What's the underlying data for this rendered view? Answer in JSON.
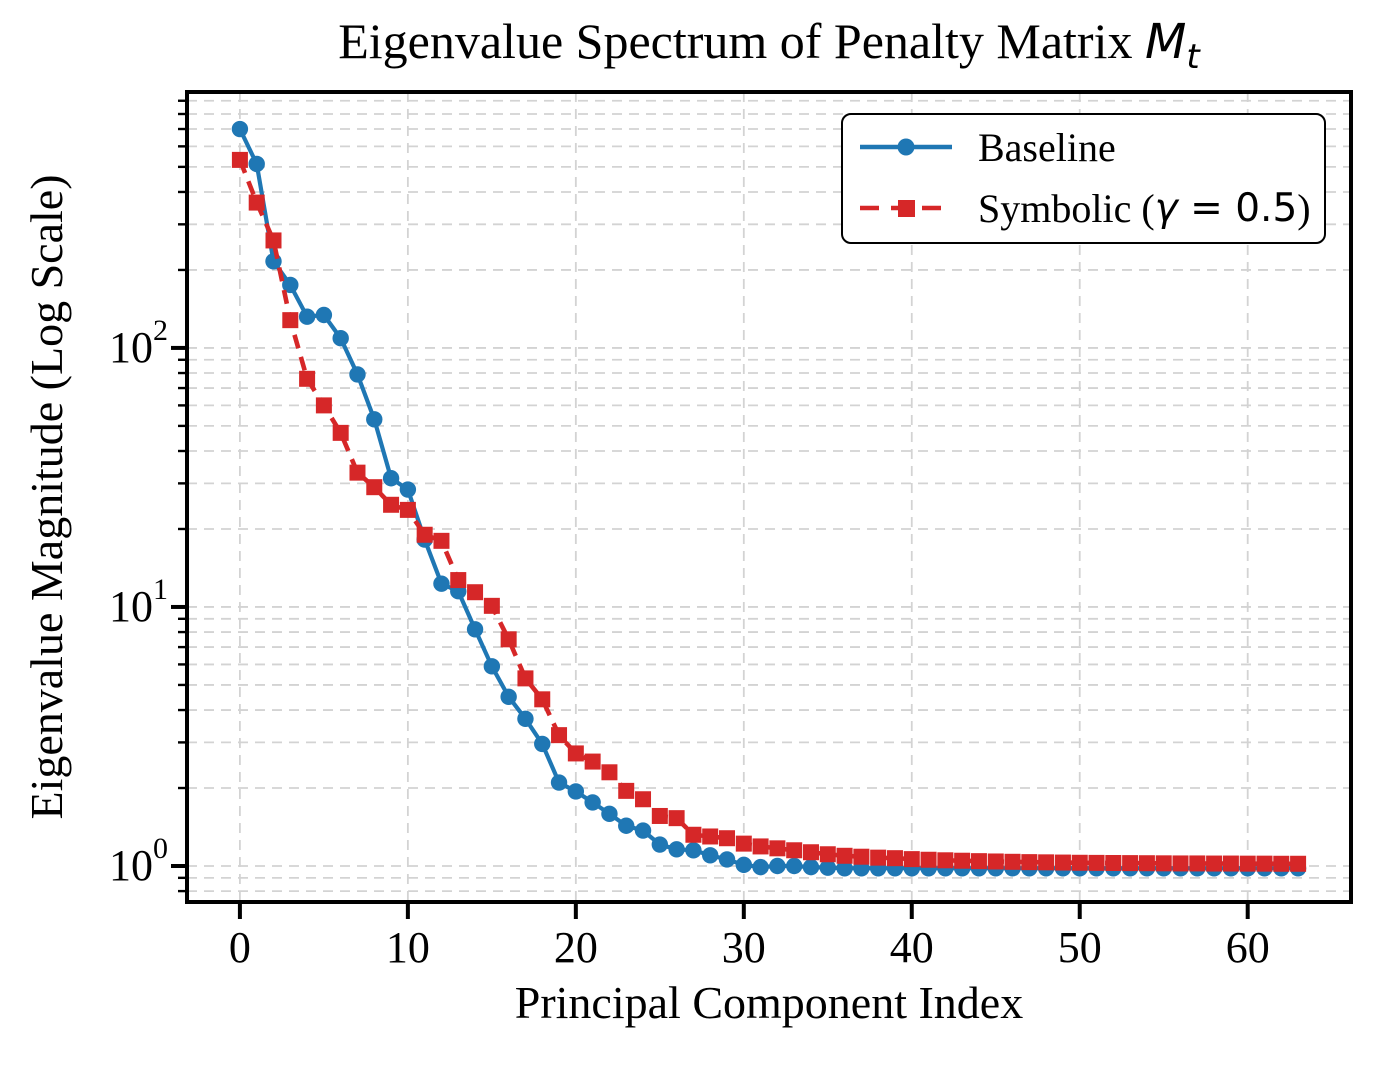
{
  "title": {
    "text": "Eigenvalue Spectrum of Penalty Matrix ",
    "math_var": "M",
    "math_sub": "t"
  },
  "legend": {
    "items": [
      {
        "label_pre": "Baseline",
        "label_math_var": "",
        "label_math_rest": "",
        "label_post": "",
        "color": "#1f77b4",
        "marker": "circle",
        "linestyle": "solid"
      },
      {
        "label_pre": "Symbolic (",
        "label_math_var": "γ",
        "label_math_rest": " = 0.5",
        "label_post": ")",
        "color": "#d62728",
        "marker": "square",
        "linestyle": "dashed"
      }
    ],
    "position": "upper right"
  },
  "colors": {
    "baseline": "#1f77b4",
    "symbolic": "#d62728",
    "grid": "#d3d3d3",
    "spine": "#000000",
    "background": "#ffffff"
  },
  "chart_data": {
    "type": "line",
    "title": "Eigenvalue Spectrum of Penalty Matrix M_t",
    "xlabel": "Principal Component Index",
    "ylabel": "Eigenvalue Magnitude (Log Scale)",
    "x_start": 0,
    "x_step": 1,
    "n_points": 64,
    "x_ticks": [
      0,
      10,
      20,
      30,
      40,
      50,
      60
    ],
    "y_major_ticks": [
      1,
      10,
      100
    ],
    "y_scale": "log",
    "xlim": [
      -3.15,
      66.15
    ],
    "ylim_log10": [
      -0.139,
      2.988
    ],
    "grid": "dashed, y major+minor, x major",
    "legend_position": "upper right",
    "series": [
      {
        "name": "Baseline",
        "color": "#1f77b4",
        "marker": "circle",
        "linestyle": "solid",
        "values": [
          700,
          513,
          216,
          175,
          132,
          134,
          109,
          79,
          53,
          31.4,
          28.4,
          18.2,
          12.3,
          11.5,
          8.2,
          5.9,
          4.5,
          3.7,
          2.96,
          2.1,
          1.94,
          1.76,
          1.59,
          1.43,
          1.37,
          1.21,
          1.16,
          1.15,
          1.1,
          1.06,
          1.01,
          0.99,
          1.0,
          1.0,
          0.99,
          0.985,
          0.98,
          0.98,
          0.98,
          0.98,
          0.98,
          0.98,
          0.98,
          0.98,
          0.98,
          0.98,
          0.98,
          0.98,
          0.98,
          0.98,
          0.98,
          0.98,
          0.98,
          0.98,
          0.98,
          0.98,
          0.98,
          0.98,
          0.98,
          0.98,
          0.98,
          0.98,
          0.98,
          0.98
        ]
      },
      {
        "name": "Symbolic (γ = 0.5)",
        "color": "#d62728",
        "marker": "square",
        "linestyle": "dashed",
        "values": [
          532,
          364,
          260,
          128,
          76,
          60,
          47,
          33,
          29,
          24.8,
          23.7,
          19.0,
          18.0,
          12.7,
          11.4,
          10.1,
          7.5,
          5.3,
          4.4,
          3.2,
          2.72,
          2.53,
          2.3,
          1.95,
          1.81,
          1.56,
          1.53,
          1.32,
          1.3,
          1.28,
          1.22,
          1.19,
          1.17,
          1.15,
          1.13,
          1.11,
          1.095,
          1.086,
          1.077,
          1.072,
          1.063,
          1.057,
          1.052,
          1.048,
          1.044,
          1.041,
          1.038,
          1.035,
          1.033,
          1.031,
          1.029,
          1.028,
          1.027,
          1.026,
          1.025,
          1.024,
          1.023,
          1.023,
          1.022,
          1.022,
          1.021,
          1.021,
          1.02,
          1.02
        ]
      }
    ]
  }
}
